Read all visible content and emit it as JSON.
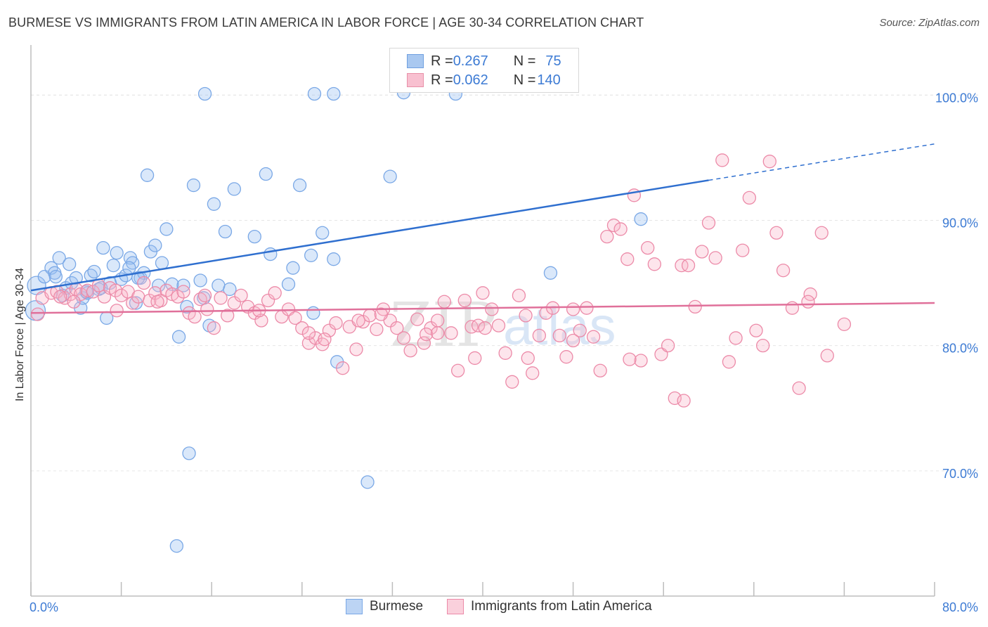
{
  "header": {
    "title": "BURMESE VS IMMIGRANTS FROM LATIN AMERICA IN LABOR FORCE | AGE 30-34 CORRELATION CHART",
    "source": "Source: ZipAtlas.com"
  },
  "watermark": {
    "zip": "ZIP",
    "atlas": "atlas"
  },
  "legend": {
    "rows": [
      {
        "r_label": "R = ",
        "r_value": "0.267",
        "n_label": "N = ",
        "n_value": "75",
        "color": "#a9c8f0",
        "border": "#6fa0e0"
      },
      {
        "r_label": "R = ",
        "r_value": "0.062",
        "n_label": "N = ",
        "n_value": "140",
        "color": "#f8c0d0",
        "border": "#e890a8"
      }
    ]
  },
  "chart_data": {
    "type": "scatter",
    "title": "BURMESE VS IMMIGRANTS FROM LATIN AMERICA IN LABOR FORCE | AGE 30-34 CORRELATION CHART",
    "ylabel": "In Labor Force | Age 30-34",
    "xlim": [
      0,
      80
    ],
    "ylim": [
      60,
      104
    ],
    "x_tick_labels": [
      "0.0%",
      "80.0%"
    ],
    "y_ticks": [
      70,
      80,
      90,
      100
    ],
    "y_tick_labels": [
      "70.0%",
      "80.0%",
      "90.0%",
      "100.0%"
    ],
    "grid": true,
    "series": [
      {
        "name": "Burmese",
        "color": "#7aa8e6",
        "fill": "rgba(150,190,240,0.35)",
        "trend": {
          "x0": 0,
          "y0": 84.4,
          "x1": 60,
          "y1": 93.2,
          "dash_to_x": 80,
          "dash_to_y": 96.1,
          "color": "#2f6fcf"
        },
        "points": [
          [
            0.5,
            84.8
          ],
          [
            1.2,
            85.5
          ],
          [
            1.8,
            86.2
          ],
          [
            2.1,
            85.8
          ],
          [
            2.5,
            87.0
          ],
          [
            2.8,
            84.0
          ],
          [
            3.1,
            84.6
          ],
          [
            3.4,
            86.5
          ],
          [
            3.6,
            85.0
          ],
          [
            4.0,
            85.4
          ],
          [
            4.4,
            83.0
          ],
          [
            4.6,
            83.8
          ],
          [
            5.0,
            84.2
          ],
          [
            5.3,
            85.6
          ],
          [
            5.6,
            85.9
          ],
          [
            6.0,
            84.5
          ],
          [
            6.4,
            87.8
          ],
          [
            6.7,
            82.2
          ],
          [
            7.0,
            85.0
          ],
          [
            7.3,
            86.4
          ],
          [
            7.6,
            87.4
          ],
          [
            8.0,
            85.3
          ],
          [
            8.4,
            85.6
          ],
          [
            8.8,
            87.0
          ],
          [
            9.0,
            86.6
          ],
          [
            9.3,
            83.4
          ],
          [
            9.7,
            85.4
          ],
          [
            10.0,
            85.8
          ],
          [
            10.3,
            93.6
          ],
          [
            10.6,
            87.5
          ],
          [
            11.0,
            88.0
          ],
          [
            11.3,
            84.8
          ],
          [
            11.6,
            86.6
          ],
          [
            12.0,
            89.3
          ],
          [
            12.5,
            84.9
          ],
          [
            13.1,
            80.7
          ],
          [
            13.5,
            84.8
          ],
          [
            13.8,
            83.1
          ],
          [
            14.0,
            71.4
          ],
          [
            14.4,
            92.8
          ],
          [
            15.0,
            85.2
          ],
          [
            15.3,
            83.8
          ],
          [
            15.8,
            81.6
          ],
          [
            16.2,
            91.3
          ],
          [
            16.6,
            84.8
          ],
          [
            17.2,
            89.1
          ],
          [
            17.6,
            84.5
          ],
          [
            18.0,
            92.5
          ],
          [
            19.8,
            88.7
          ],
          [
            20.8,
            93.7
          ],
          [
            21.2,
            87.3
          ],
          [
            22.8,
            84.9
          ],
          [
            23.2,
            86.2
          ],
          [
            23.8,
            92.8
          ],
          [
            24.8,
            87.2
          ],
          [
            25.0,
            82.6
          ],
          [
            25.8,
            89.0
          ],
          [
            26.8,
            86.9
          ],
          [
            27.1,
            78.7
          ],
          [
            29.8,
            69.1
          ],
          [
            31.8,
            93.5
          ],
          [
            33.0,
            100.2
          ],
          [
            37.6,
            100.1
          ],
          [
            46.0,
            85.8
          ],
          [
            54.0,
            90.1
          ],
          [
            15.4,
            100.1
          ],
          [
            25.1,
            100.1
          ],
          [
            26.8,
            100.1
          ],
          [
            12.9,
            64.0
          ],
          [
            0.4,
            82.8
          ],
          [
            8.7,
            86.2
          ],
          [
            6.2,
            84.6
          ],
          [
            2.2,
            85.5
          ],
          [
            4.9,
            84.3
          ],
          [
            9.5,
            85.4
          ]
        ]
      },
      {
        "name": "Immigrants from Latin America",
        "color": "#ec8aa8",
        "fill": "rgba(248,180,200,0.35)",
        "trend": {
          "x0": 0,
          "y0": 82.6,
          "x1": 80,
          "y1": 83.4,
          "color": "#e0709a"
        },
        "points": [
          [
            0.6,
            82.5
          ],
          [
            1.0,
            83.8
          ],
          [
            1.8,
            84.2
          ],
          [
            2.3,
            84.3
          ],
          [
            3.0,
            83.8
          ],
          [
            3.5,
            84.1
          ],
          [
            4.0,
            84.5
          ],
          [
            4.4,
            84.1
          ],
          [
            5.0,
            84.4
          ],
          [
            5.5,
            84.3
          ],
          [
            6.0,
            84.8
          ],
          [
            6.5,
            83.9
          ],
          [
            7.0,
            84.6
          ],
          [
            7.5,
            84.4
          ],
          [
            8.0,
            84.0
          ],
          [
            8.6,
            84.3
          ],
          [
            9.0,
            83.4
          ],
          [
            9.5,
            83.9
          ],
          [
            10.0,
            85.0
          ],
          [
            10.5,
            83.6
          ],
          [
            11.0,
            84.2
          ],
          [
            11.5,
            83.6
          ],
          [
            12.0,
            84.4
          ],
          [
            12.5,
            84.1
          ],
          [
            13.0,
            83.9
          ],
          [
            13.5,
            84.3
          ],
          [
            14.0,
            82.6
          ],
          [
            14.5,
            82.3
          ],
          [
            15.0,
            83.7
          ],
          [
            15.6,
            82.9
          ],
          [
            16.2,
            81.4
          ],
          [
            16.8,
            83.8
          ],
          [
            17.4,
            82.4
          ],
          [
            18.0,
            83.4
          ],
          [
            18.6,
            84.0
          ],
          [
            19.2,
            83.1
          ],
          [
            19.8,
            82.6
          ],
          [
            20.4,
            82.0
          ],
          [
            21.0,
            83.6
          ],
          [
            21.6,
            84.2
          ],
          [
            22.2,
            82.3
          ],
          [
            22.8,
            82.9
          ],
          [
            23.4,
            82.2
          ],
          [
            24.0,
            81.4
          ],
          [
            24.6,
            80.2
          ],
          [
            25.2,
            80.6
          ],
          [
            25.8,
            80.1
          ],
          [
            26.4,
            81.2
          ],
          [
            27.0,
            81.8
          ],
          [
            27.6,
            78.2
          ],
          [
            28.2,
            81.5
          ],
          [
            28.8,
            79.7
          ],
          [
            29.4,
            81.9
          ],
          [
            30.0,
            82.4
          ],
          [
            30.6,
            81.3
          ],
          [
            31.2,
            82.9
          ],
          [
            31.8,
            82.0
          ],
          [
            32.4,
            81.4
          ],
          [
            33.0,
            80.6
          ],
          [
            33.6,
            79.6
          ],
          [
            34.2,
            82.1
          ],
          [
            34.8,
            80.2
          ],
          [
            35.4,
            81.4
          ],
          [
            36.0,
            82.0
          ],
          [
            36.6,
            83.5
          ],
          [
            37.2,
            81.0
          ],
          [
            37.8,
            78.0
          ],
          [
            38.4,
            83.6
          ],
          [
            39.0,
            81.5
          ],
          [
            39.6,
            81.6
          ],
          [
            40.2,
            81.4
          ],
          [
            40.8,
            82.9
          ],
          [
            41.4,
            81.6
          ],
          [
            42.0,
            79.4
          ],
          [
            42.6,
            77.1
          ],
          [
            43.2,
            84.0
          ],
          [
            43.8,
            82.4
          ],
          [
            44.4,
            77.8
          ],
          [
            45.0,
            80.8
          ],
          [
            45.6,
            82.6
          ],
          [
            46.2,
            83.0
          ],
          [
            46.8,
            80.8
          ],
          [
            47.4,
            79.1
          ],
          [
            48.0,
            82.9
          ],
          [
            48.6,
            81.2
          ],
          [
            49.2,
            83.0
          ],
          [
            49.8,
            80.7
          ],
          [
            50.4,
            78.0
          ],
          [
            51.0,
            88.7
          ],
          [
            51.6,
            89.6
          ],
          [
            52.2,
            89.3
          ],
          [
            52.8,
            86.9
          ],
          [
            53.4,
            92.0
          ],
          [
            54.0,
            78.8
          ],
          [
            54.6,
            87.8
          ],
          [
            55.2,
            86.5
          ],
          [
            55.8,
            79.3
          ],
          [
            56.4,
            80.0
          ],
          [
            57.0,
            75.8
          ],
          [
            57.6,
            86.4
          ],
          [
            58.2,
            86.4
          ],
          [
            58.8,
            83.1
          ],
          [
            59.4,
            87.5
          ],
          [
            60.0,
            89.8
          ],
          [
            60.6,
            87.0
          ],
          [
            61.2,
            94.8
          ],
          [
            61.8,
            78.7
          ],
          [
            62.4,
            80.6
          ],
          [
            63.0,
            87.6
          ],
          [
            63.6,
            91.8
          ],
          [
            64.2,
            81.2
          ],
          [
            64.8,
            80.0
          ],
          [
            65.4,
            94.7
          ],
          [
            66.0,
            89.0
          ],
          [
            66.6,
            86.0
          ],
          [
            67.4,
            83.0
          ],
          [
            68.0,
            76.6
          ],
          [
            69.0,
            84.1
          ],
          [
            70.0,
            89.0
          ],
          [
            70.5,
            79.2
          ],
          [
            72.0,
            81.7
          ],
          [
            26.0,
            80.5
          ],
          [
            35.0,
            80.9
          ],
          [
            40.0,
            84.2
          ],
          [
            48.0,
            80.4
          ],
          [
            44.0,
            79.0
          ],
          [
            53.0,
            78.9
          ],
          [
            57.8,
            75.6
          ],
          [
            68.8,
            83.5
          ],
          [
            39.3,
            79.0
          ],
          [
            36.0,
            81.0
          ],
          [
            31.0,
            82.5
          ],
          [
            29.0,
            82.0
          ],
          [
            24.6,
            81.0
          ],
          [
            20.2,
            82.8
          ],
          [
            15.4,
            84.0
          ],
          [
            11.2,
            83.5
          ],
          [
            7.6,
            82.8
          ],
          [
            3.8,
            83.5
          ],
          [
            2.6,
            83.9
          ]
        ]
      }
    ]
  }
}
